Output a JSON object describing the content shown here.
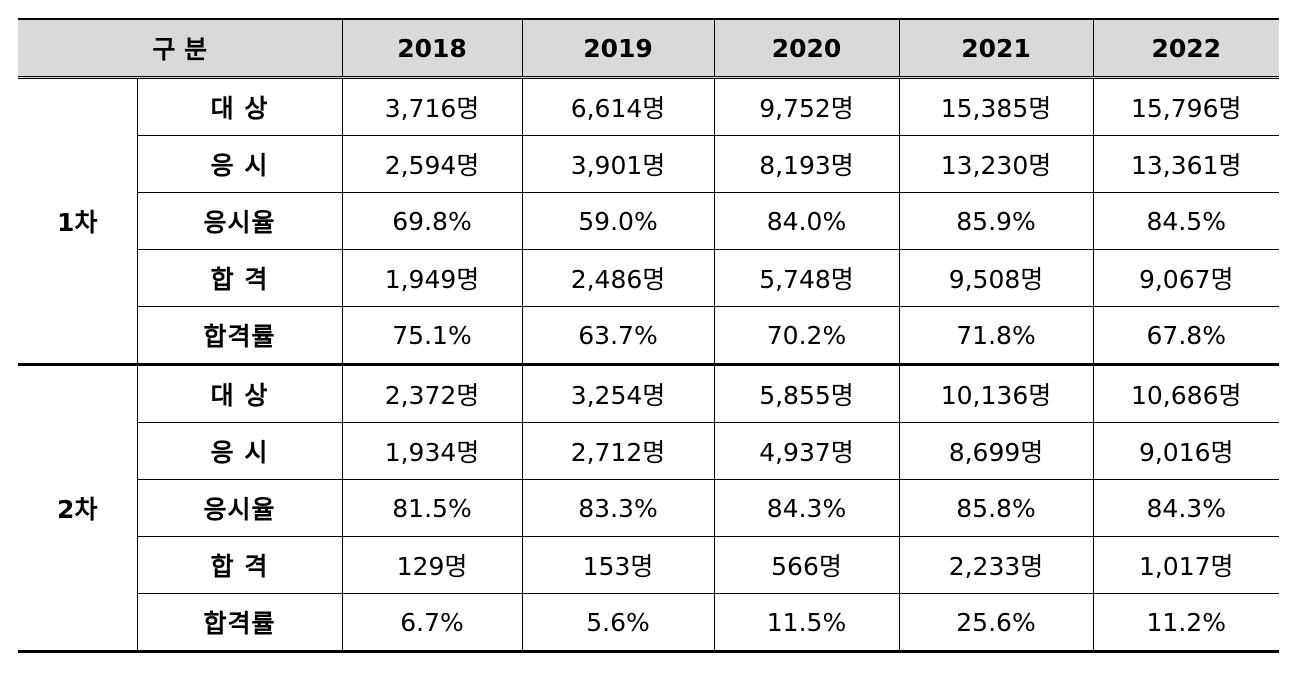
{
  "table": {
    "header": {
      "label": "구 분",
      "years": [
        "2018",
        "2019",
        "2020",
        "2021",
        "2022"
      ]
    },
    "groups": [
      {
        "name": "1차",
        "rows": [
          {
            "metric": "대 상",
            "values": [
              "3,716명",
              "6,614명",
              "9,752명",
              "15,385명",
              "15,796명"
            ]
          },
          {
            "metric": "응 시",
            "values": [
              "2,594명",
              "3,901명",
              "8,193명",
              "13,230명",
              "13,361명"
            ]
          },
          {
            "metric": "응시율",
            "values": [
              "69.8%",
              "59.0%",
              "84.0%",
              "85.9%",
              "84.5%"
            ]
          },
          {
            "metric": "합 격",
            "values": [
              "1,949명",
              "2,486명",
              "5,748명",
              "9,508명",
              "9,067명"
            ]
          },
          {
            "metric": "합격률",
            "values": [
              "75.1%",
              "63.7%",
              "70.2%",
              "71.8%",
              "67.8%"
            ]
          }
        ]
      },
      {
        "name": "2차",
        "rows": [
          {
            "metric": "대 상",
            "values": [
              "2,372명",
              "3,254명",
              "5,855명",
              "10,136명",
              "10,686명"
            ]
          },
          {
            "metric": "응 시",
            "values": [
              "1,934명",
              "2,712명",
              "4,937명",
              "8,699명",
              "9,016명"
            ]
          },
          {
            "metric": "응시율",
            "values": [
              "81.5%",
              "83.3%",
              "84.3%",
              "85.8%",
              "84.3%"
            ]
          },
          {
            "metric": "합 격",
            "values": [
              "129명",
              "153명",
              "566명",
              "2,233명",
              "1,017명"
            ]
          },
          {
            "metric": "합격률",
            "values": [
              "6.7%",
              "5.6%",
              "11.5%",
              "25.6%",
              "11.2%"
            ]
          }
        ]
      }
    ]
  }
}
